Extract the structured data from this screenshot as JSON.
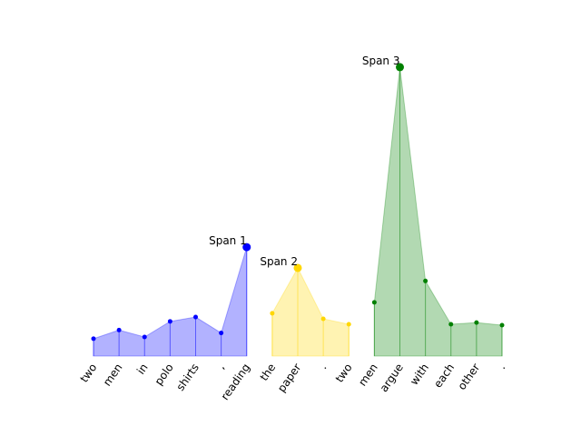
{
  "chart_data": {
    "type": "area",
    "categories": [
      "two",
      "men",
      "in",
      "polo",
      "shirts",
      ",",
      "reading",
      "the",
      "paper",
      ".",
      "two",
      "men",
      "argue",
      "with",
      "each",
      "other",
      "."
    ],
    "series": [
      {
        "name": "Span 1",
        "color": "#0000ff",
        "values": [
          0.06,
          0.09,
          0.066,
          0.12,
          0.135,
          0.08,
          0.377,
          null,
          null,
          null,
          null,
          null,
          null,
          null,
          null,
          null,
          null
        ]
      },
      {
        "name": "Span 2",
        "color": "#ffd700",
        "values": [
          null,
          null,
          null,
          null,
          null,
          null,
          null,
          0.148,
          0.305,
          0.129,
          0.11,
          null,
          null,
          null,
          null,
          null,
          null
        ]
      },
      {
        "name": "Span 3",
        "color": "#008000",
        "values": [
          null,
          null,
          null,
          null,
          null,
          null,
          null,
          null,
          null,
          null,
          null,
          0.186,
          1.0,
          0.26,
          0.11,
          0.116,
          0.107
        ]
      }
    ],
    "ylim": [
      0,
      1.05
    ]
  }
}
